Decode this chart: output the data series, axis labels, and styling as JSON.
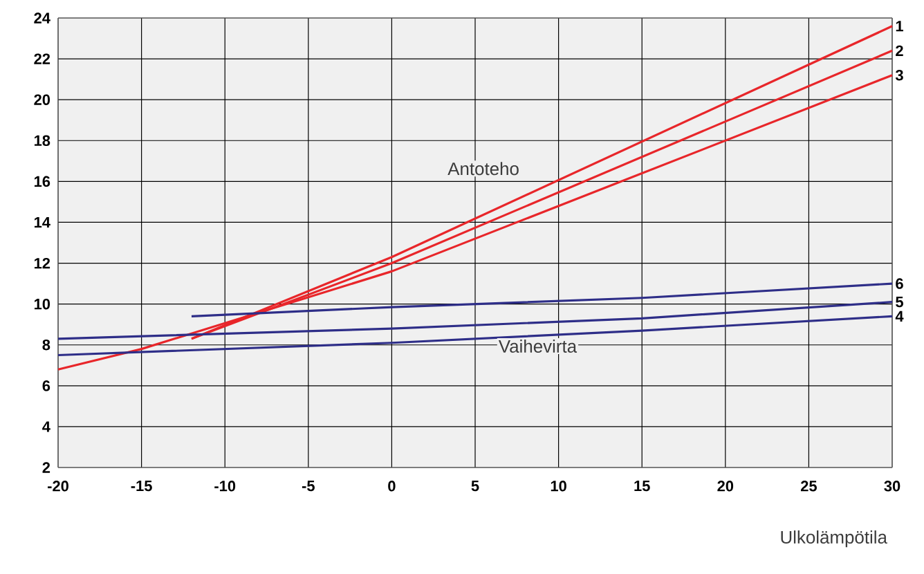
{
  "chart_data": {
    "type": "line",
    "xlabel": "Ulkolämpötila",
    "xlim": [
      -20,
      30
    ],
    "xticks": [
      -20,
      -15,
      -10,
      -5,
      0,
      5,
      10,
      15,
      20,
      25,
      30
    ],
    "ylim": [
      2,
      24
    ],
    "yticks": [
      2,
      4,
      6,
      8,
      10,
      12,
      14,
      16,
      18,
      20,
      22,
      24
    ],
    "grid": true,
    "marker": "none",
    "line_style": "solid",
    "series": [
      {
        "name": "1",
        "color": "#e8262a",
        "x": [
          -12,
          0,
          30
        ],
        "values": [
          8.3,
          12.3,
          23.6
        ]
      },
      {
        "name": "2",
        "color": "#e8262a",
        "x": [
          -12,
          0,
          30
        ],
        "values": [
          8.3,
          12.0,
          22.4
        ]
      },
      {
        "name": "3",
        "color": "#e8262a",
        "x": [
          -20,
          -15,
          0,
          30
        ],
        "values": [
          6.8,
          7.8,
          11.6,
          21.2
        ]
      },
      {
        "name": "4",
        "color": "#2e2e88",
        "x": [
          -20,
          0,
          15,
          30
        ],
        "values": [
          7.5,
          8.1,
          8.7,
          9.4
        ]
      },
      {
        "name": "5",
        "color": "#2e2e88",
        "x": [
          -20,
          0,
          15,
          30
        ],
        "values": [
          8.3,
          8.8,
          9.3,
          10.1
        ]
      },
      {
        "name": "6",
        "color": "#2e2e88",
        "x": [
          -12,
          0,
          15,
          30
        ],
        "values": [
          9.4,
          9.85,
          10.3,
          11.0
        ]
      }
    ],
    "annotations": [
      "Antoteho",
      "Vaihevirta"
    ]
  }
}
